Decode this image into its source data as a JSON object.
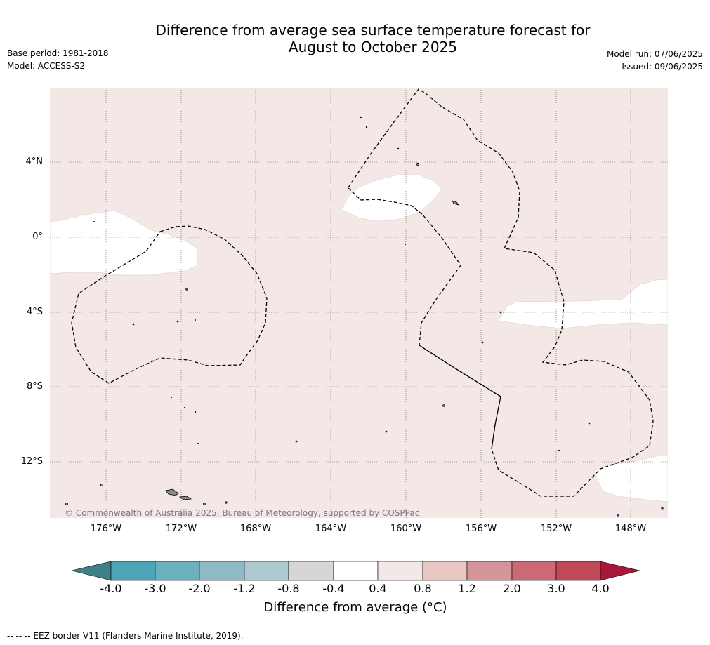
{
  "title_line1": "Difference from average sea surface temperature forecast for",
  "title_line2": "August to October 2025",
  "base_period": "Base period: 1981-2018",
  "model": "Model: ACCESS-S2",
  "model_run": "Model run: 07/06/2025",
  "issued": "Issued: 09/06/2025",
  "lat_labels": [
    "4°N",
    "0°",
    "4°S",
    "8°S",
    "12°S"
  ],
  "lon_labels": [
    "176°W",
    "172°W",
    "168°W",
    "164°W",
    "160°W",
    "156°W",
    "152°W",
    "148°W"
  ],
  "copyright": "© Commonwealth of Australia 2025, Bureau of Meteorology, supported by COSPPac",
  "colorbar": {
    "ticks": [
      "-4.0",
      "-3.0",
      "-2.0",
      "-1.2",
      "-0.8",
      "-0.4",
      "0.4",
      "0.8",
      "1.2",
      "2.0",
      "3.0",
      "4.0"
    ],
    "colors": [
      "#3f7f88",
      "#4ba5b6",
      "#6cafbe",
      "#8fbac5",
      "#acc9cf",
      "#d6d6d6",
      "#ffffff",
      "#f4e8e7",
      "#e8c7c3",
      "#d5939a",
      "#cb6a74",
      "#c04858",
      "#a8163a"
    ],
    "title": "Difference from average (°C)"
  },
  "map_colors": {
    "background": "#f4e8e7",
    "neutral": "#ffffff",
    "land": "#888888"
  },
  "footer": "--  --  -- EEZ border V11 (Flanders Marine Institute, 2019)."
}
